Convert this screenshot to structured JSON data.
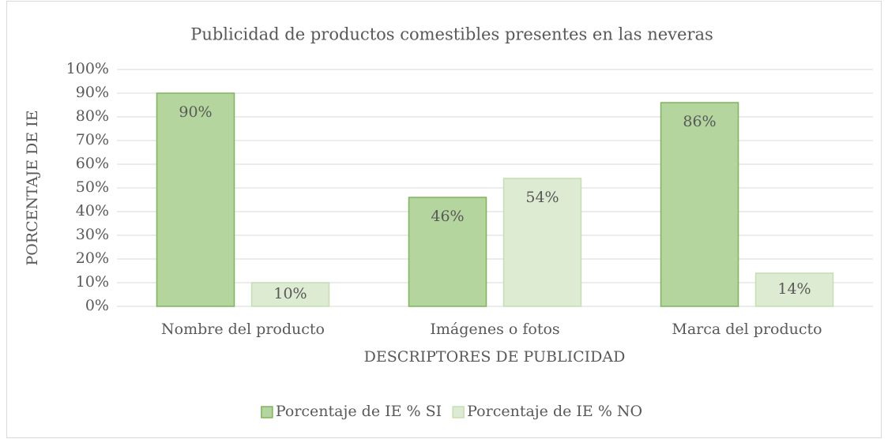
{
  "chart_data": {
    "type": "bar",
    "title": "Publicidad de productos comestibles presentes en las neveras",
    "x_label": "DESCRIPTORES DE PUBLICIDAD",
    "y_label": "PORCENTAJE DE IE",
    "categories": [
      "Nombre del producto",
      "Imágenes o fotos",
      "Marca del producto"
    ],
    "series": [
      {
        "name": "Porcentaje de IE % SI",
        "color": "#b4d59e",
        "values": [
          90,
          46,
          86
        ],
        "value_labels": [
          "90%",
          "46%",
          "86%"
        ]
      },
      {
        "name": "Porcentaje de IE % NO",
        "color": "#dcebd2",
        "values": [
          10,
          54,
          14
        ],
        "value_labels": [
          "10%",
          "54%",
          "14%"
        ]
      }
    ],
    "ylim": [
      0,
      100
    ],
    "yticks": [
      {
        "value": 0,
        "label": "0%"
      },
      {
        "value": 10,
        "label": "10%"
      },
      {
        "value": 20,
        "label": "20%"
      },
      {
        "value": 30,
        "label": "30%"
      },
      {
        "value": 40,
        "label": "40%"
      },
      {
        "value": 50,
        "label": "50%"
      },
      {
        "value": 60,
        "label": "60%"
      },
      {
        "value": 70,
        "label": "70%"
      },
      {
        "value": 80,
        "label": "80%"
      },
      {
        "value": 90,
        "label": "90%"
      },
      {
        "value": 100,
        "label": "100%"
      }
    ],
    "grid": true,
    "legend": "bottom"
  }
}
